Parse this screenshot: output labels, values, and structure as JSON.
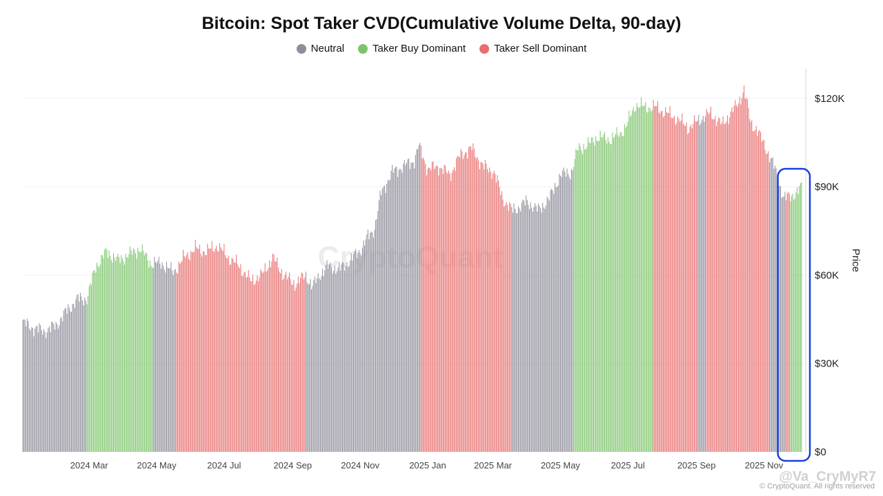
{
  "chart_data": {
    "type": "bar",
    "title": "Bitcoin: Spot Taker CVD(Cumulative Volume Delta, 90-day)",
    "ylabel": "Price",
    "ylim": [
      0,
      130000
    ],
    "y_ticks": [
      0,
      30000,
      60000,
      90000,
      120000
    ],
    "y_tick_labels": [
      "$0",
      "$30K",
      "$60K",
      "$90K",
      "$120K"
    ],
    "x_tick_labels": [
      "2024 Mar",
      "2024 May",
      "2024 Jul",
      "2024 Sep",
      "2024 Nov",
      "2025 Jan",
      "2025 Mar",
      "2025 May",
      "2025 Jul",
      "2025 Sep",
      "2025 Nov"
    ],
    "x_tick_days": [
      60,
      121,
      182,
      244,
      305,
      366,
      425,
      486,
      547,
      609,
      670
    ],
    "legend": [
      {
        "name": "Neutral",
        "color": "#8e8d99"
      },
      {
        "name": "Taker Buy Dominant",
        "color": "#7cc46a"
      },
      {
        "name": "Taker Sell Dominant",
        "color": "#e86f6f"
      }
    ],
    "day_count": 705,
    "price_anchors": [
      [
        0,
        44000
      ],
      [
        10,
        42000
      ],
      [
        20,
        41000
      ],
      [
        30,
        43000
      ],
      [
        40,
        48000
      ],
      [
        50,
        52000
      ],
      [
        58,
        52000
      ],
      [
        66,
        63000
      ],
      [
        76,
        68000
      ],
      [
        86,
        65000
      ],
      [
        96,
        67000
      ],
      [
        106,
        69000
      ],
      [
        116,
        64000
      ],
      [
        126,
        64000
      ],
      [
        136,
        61000
      ],
      [
        146,
        66000
      ],
      [
        156,
        69000
      ],
      [
        166,
        68000
      ],
      [
        176,
        70000
      ],
      [
        186,
        66000
      ],
      [
        196,
        63000
      ],
      [
        206,
        58000
      ],
      [
        216,
        60000
      ],
      [
        226,
        66000
      ],
      [
        236,
        60000
      ],
      [
        246,
        57000
      ],
      [
        256,
        60000
      ],
      [
        262,
        56000
      ],
      [
        268,
        60000
      ],
      [
        276,
        63000
      ],
      [
        286,
        62000
      ],
      [
        296,
        65000
      ],
      [
        306,
        69000
      ],
      [
        312,
        73000
      ],
      [
        318,
        76000
      ],
      [
        324,
        88000
      ],
      [
        334,
        95000
      ],
      [
        344,
        97000
      ],
      [
        354,
        99000
      ],
      [
        358,
        104000
      ],
      [
        366,
        96000
      ],
      [
        376,
        97000
      ],
      [
        386,
        94000
      ],
      [
        396,
        101000
      ],
      [
        406,
        103000
      ],
      [
        416,
        97000
      ],
      [
        426,
        95000
      ],
      [
        434,
        86000
      ],
      [
        442,
        82000
      ],
      [
        448,
        83000
      ],
      [
        456,
        85000
      ],
      [
        466,
        82000
      ],
      [
        476,
        86000
      ],
      [
        486,
        94000
      ],
      [
        496,
        95000
      ],
      [
        502,
        103000
      ],
      [
        510,
        104000
      ],
      [
        520,
        107000
      ],
      [
        530,
        106000
      ],
      [
        540,
        108000
      ],
      [
        546,
        111000
      ],
      [
        554,
        118000
      ],
      [
        562,
        117000
      ],
      [
        572,
        117000
      ],
      [
        582,
        115000
      ],
      [
        592,
        113000
      ],
      [
        602,
        110000
      ],
      [
        612,
        113000
      ],
      [
        622,
        115000
      ],
      [
        632,
        111000
      ],
      [
        638,
        114000
      ],
      [
        646,
        118000
      ],
      [
        652,
        123000
      ],
      [
        658,
        112000
      ],
      [
        664,
        109000
      ],
      [
        672,
        103000
      ],
      [
        680,
        96000
      ],
      [
        688,
        86000
      ],
      [
        694,
        87000
      ],
      [
        700,
        88000
      ],
      [
        704,
        90000
      ]
    ],
    "segments": [
      {
        "start": 0,
        "end": 58,
        "state": "neutral"
      },
      {
        "start": 58,
        "end": 118,
        "state": "buy"
      },
      {
        "start": 118,
        "end": 138,
        "state": "neutral"
      },
      {
        "start": 138,
        "end": 256,
        "state": "sell"
      },
      {
        "start": 256,
        "end": 360,
        "state": "neutral"
      },
      {
        "start": 360,
        "end": 442,
        "state": "sell"
      },
      {
        "start": 442,
        "end": 498,
        "state": "neutral"
      },
      {
        "start": 498,
        "end": 570,
        "state": "buy"
      },
      {
        "start": 570,
        "end": 610,
        "state": "sell"
      },
      {
        "start": 610,
        "end": 618,
        "state": "neutral"
      },
      {
        "start": 618,
        "end": 676,
        "state": "sell"
      },
      {
        "start": 676,
        "end": 690,
        "state": "neutral"
      },
      {
        "start": 690,
        "end": 694,
        "state": "sell"
      },
      {
        "start": 694,
        "end": 705,
        "state": "buy"
      }
    ],
    "highlight": {
      "start": 690,
      "end": 705,
      "color": "#1a3fe0"
    }
  },
  "page": {
    "footer": "© CryptoQuant. All rights reserved",
    "watermark": "CryptoQuant",
    "handle": "@Va_CryMyR7"
  }
}
